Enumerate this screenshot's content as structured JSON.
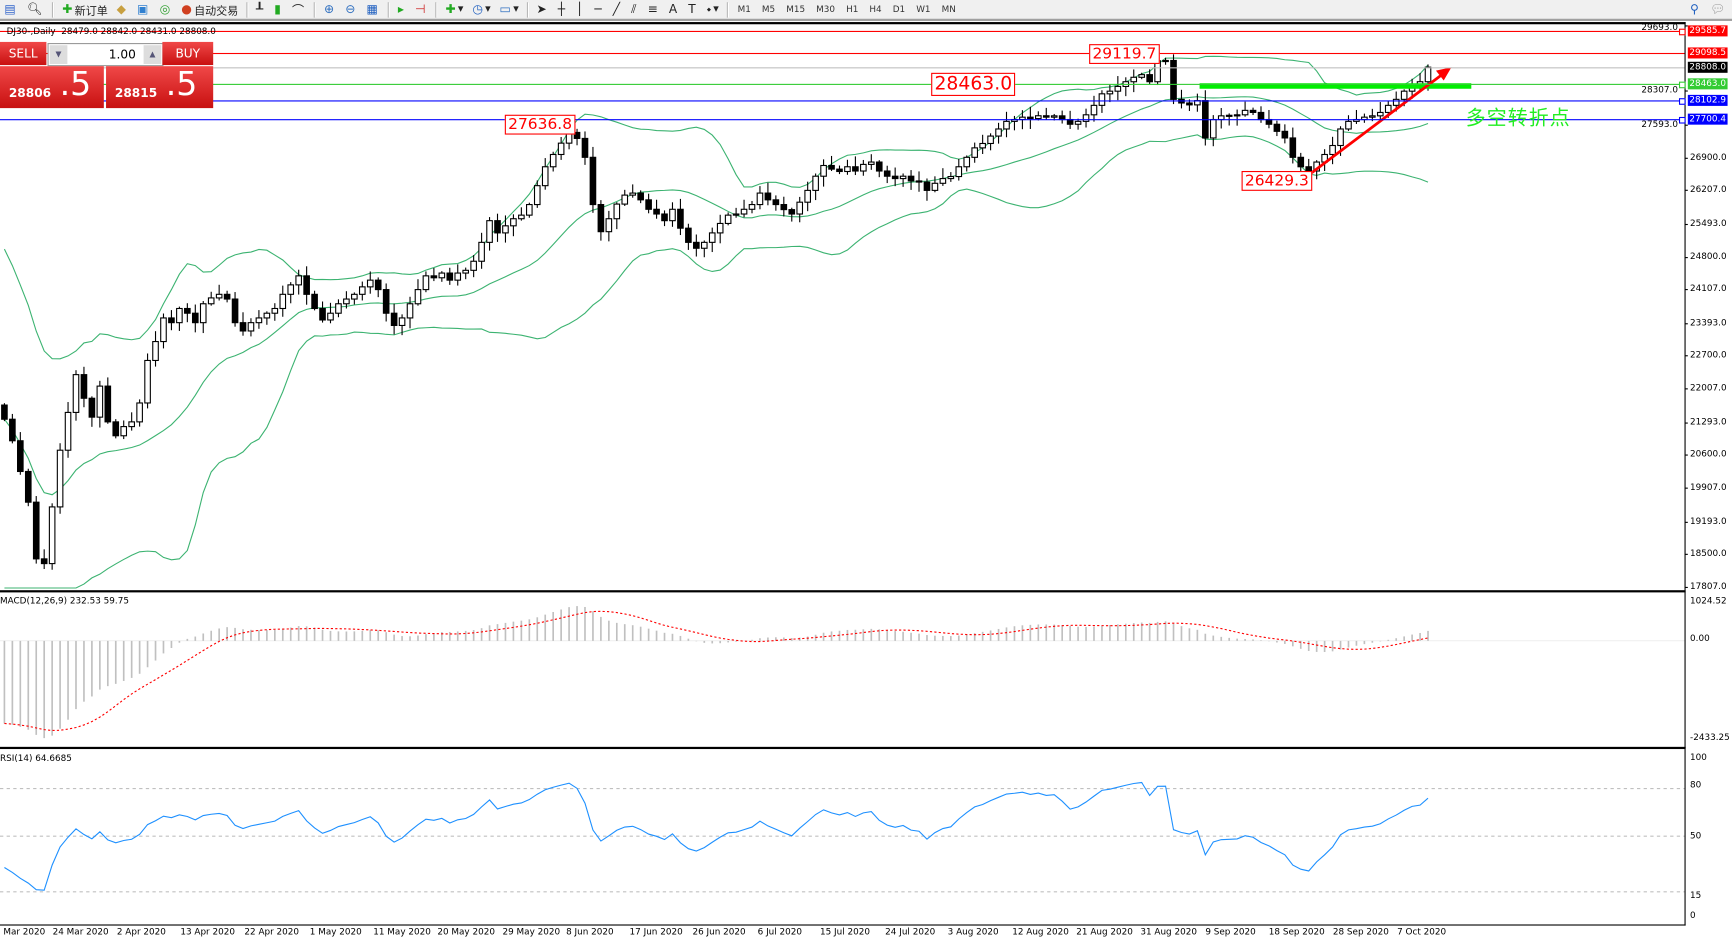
{
  "toolbar": {
    "new_order": "新订单",
    "auto_trading": "自动交易",
    "timeframes": [
      "M1",
      "M5",
      "M15",
      "M30",
      "H1",
      "H4",
      "D1",
      "W1",
      "MN"
    ]
  },
  "chart_header": {
    "symbol": "DJ30-,Daily",
    "ohlc": "28479.0 28842.0 28431.0 28808.0"
  },
  "trade_panel": {
    "sell_label": "SELL",
    "buy_label": "BUY",
    "lot": "1.00",
    "sell_price_main": "28806",
    "sell_price_big": ".5",
    "buy_price_main": "28815",
    "buy_price_big": ".5"
  },
  "hlines": [
    {
      "label": "29585.7",
      "color": "#ff0000",
      "bg": "#ff0000"
    },
    {
      "label": "29098.5",
      "color": "#ff0000",
      "bg": "#ff0000"
    },
    {
      "label": "28808.0",
      "color": "#c0c0c0",
      "bg": "#000000"
    },
    {
      "label": "28463.0",
      "color": "#33cc33",
      "bg": "#33cc33"
    },
    {
      "label": "28102.9",
      "color": "#0000ff",
      "bg": "#0000ff"
    },
    {
      "label": "27700.4",
      "color": "#0000ff",
      "bg": "#0000ff"
    }
  ],
  "annotations": {
    "high": "29119.7",
    "level": "28463.0",
    "mid": "27636.8",
    "low": "26429.3",
    "turning_point": "多空转折点",
    "support_color": "#00ee00",
    "arrow_color": "#ff0000"
  },
  "price_axis": [
    "29693.0",
    "28307.0",
    "27593.0",
    "26900.0",
    "26207.0",
    "25493.0",
    "24800.0",
    "24107.0",
    "23393.0",
    "22700.0",
    "22007.0",
    "21293.0",
    "20600.0",
    "19907.0",
    "19193.0",
    "18500.0",
    "17807.0"
  ],
  "macd": {
    "label": "MACD(12,26,9) 232.53 59.75",
    "axis": [
      "1024.52",
      "0.00",
      "-2433.25"
    ]
  },
  "rsi": {
    "label": "RSI(14) 64.6685",
    "axis": [
      "100",
      "80",
      "50",
      "15",
      "0"
    ]
  },
  "dates": [
    "Mar 2020",
    "24 Mar 2020",
    "2 Apr 2020",
    "13 Apr 2020",
    "22 Apr 2020",
    "1 May 2020",
    "11 May 2020",
    "20 May 2020",
    "29 May 2020",
    "8 Jun 2020",
    "17 Jun 2020",
    "26 Jun 2020",
    "6 Jul 2020",
    "15 Jul 2020",
    "24 Jul 2020",
    "3 Aug 2020",
    "12 Aug 2020",
    "21 Aug 2020",
    "31 Aug 2020",
    "9 Sep 2020",
    "18 Sep 2020",
    "28 Sep 2020",
    "7 Oct 2020"
  ],
  "chart_data": {
    "type": "candlestick",
    "title": "DJ30-,Daily",
    "ylim": [
      17807,
      29693
    ],
    "bull_color": "#ffffff",
    "bear_color": "#000000",
    "band_color": "#3cb371",
    "indicators": [
      "Bollinger Bands",
      "MACD(12,26,9)",
      "RSI(14)"
    ],
    "close": [
      21356,
      20900,
      20250,
      19600,
      18400,
      18300,
      19500,
      20700,
      21500,
      22300,
      21800,
      21400,
      22057,
      21300,
      21006,
      21200,
      21300,
      21700,
      22600,
      23000,
      23500,
      23400,
      23700,
      23600,
      23400,
      23800,
      23924,
      24000,
      23900,
      23400,
      23224,
      23400,
      23500,
      23600,
      23700,
      24000,
      24200,
      24391,
      24000,
      23700,
      23457,
      23600,
      23800,
      23900,
      24000,
      24158,
      24300,
      24100,
      23600,
      23341,
      23500,
      23800,
      24100,
      24391,
      24350,
      24450,
      24300,
      24450,
      24508,
      24700,
      25100,
      25559,
      25300,
      25450,
      25600,
      25676,
      25900,
      26300,
      26700,
      26960,
      27200,
      27427,
      27300,
      26900,
      25900,
      25326,
      25600,
      25910,
      26100,
      26143,
      26000,
      25800,
      25700,
      25559,
      25800,
      25400,
      25100,
      24975,
      25100,
      25300,
      25500,
      25676,
      25700,
      25800,
      25900,
      26143,
      26000,
      25900,
      25793,
      25700,
      25950,
      26200,
      26500,
      26727,
      26650,
      26600,
      26700,
      26610,
      26750,
      26800,
      26610,
      26500,
      26450,
      26500,
      26400,
      26376,
      26200,
      26350,
      26450,
      26493,
      26700,
      26900,
      27100,
      27193,
      27350,
      27500,
      27661,
      27700,
      27750,
      27720,
      27780,
      27750,
      27778,
      27700,
      27600,
      27661,
      27800,
      28000,
      28244,
      28300,
      28400,
      28500,
      28594,
      28650,
      28500,
      28944,
      28950,
      28127,
      28050,
      28010,
      28100,
      27310,
      27700,
      27778,
      27790,
      27800,
      27894,
      27850,
      27700,
      27600,
      27450,
      27310,
      26900,
      26700,
      26610,
      26800,
      26960,
      27150,
      27500,
      27661,
      27700,
      27750,
      27778,
      27850,
      28000,
      28127,
      28300,
      28450,
      28500,
      28808
    ]
  }
}
